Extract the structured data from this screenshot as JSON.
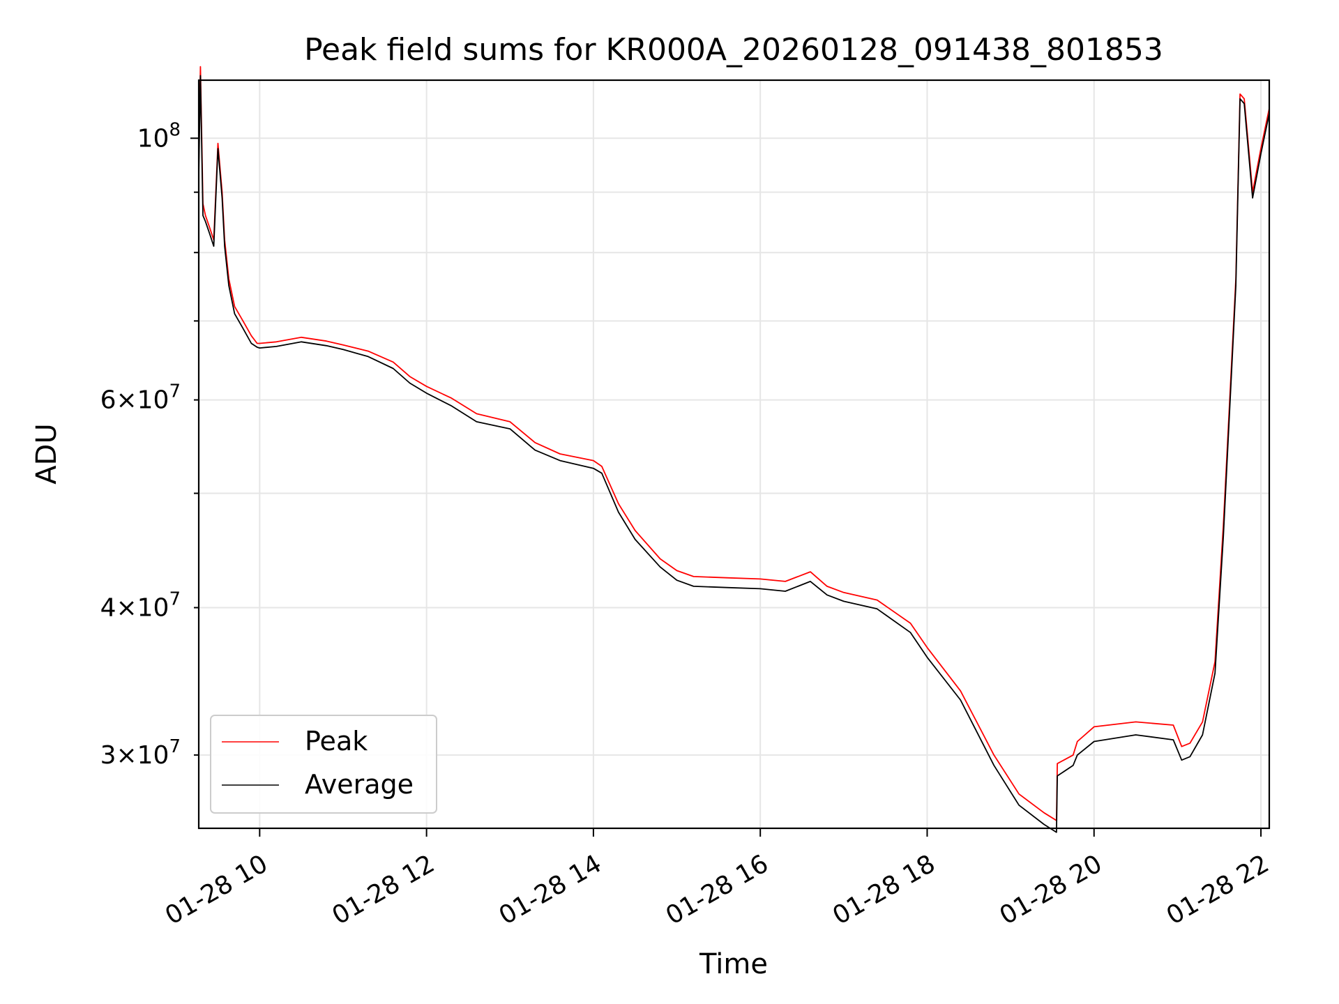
{
  "chart_data": {
    "type": "line",
    "title": "Peak field sums for KR000A_20260128_091438_801853",
    "xlabel": "Time",
    "ylabel": "ADU",
    "yscale": "log",
    "ylim": [
      26000000,
      112000000
    ],
    "xlim": [
      9.27,
      22.1
    ],
    "grid": true,
    "legend_position": "lower-left",
    "x_ticks": [
      {
        "value": 10,
        "label": "01-28 10"
      },
      {
        "value": 12,
        "label": "01-28 12"
      },
      {
        "value": 14,
        "label": "01-28 14"
      },
      {
        "value": 16,
        "label": "01-28 16"
      },
      {
        "value": 18,
        "label": "01-28 18"
      },
      {
        "value": 20,
        "label": "01-28 20"
      },
      {
        "value": 22,
        "label": "01-28 22"
      }
    ],
    "y_ticks_major": [
      {
        "value": 100000000,
        "mantissa": "",
        "exponent": "8",
        "label": "10^8"
      }
    ],
    "y_ticks_minor": [
      {
        "value": 30000000,
        "mantissa": "3",
        "exponent": "7",
        "label": "3×10^7"
      },
      {
        "value": 40000000,
        "mantissa": "4",
        "exponent": "7",
        "label": "4×10^7"
      },
      {
        "value": 50000000,
        "mantissa": "",
        "exponent": "",
        "label": ""
      },
      {
        "value": 60000000,
        "mantissa": "6",
        "exponent": "7",
        "label": "6×10^7"
      },
      {
        "value": 70000000,
        "mantissa": "",
        "exponent": "",
        "label": ""
      },
      {
        "value": 80000000,
        "mantissa": "",
        "exponent": "",
        "label": ""
      },
      {
        "value": 90000000,
        "mantissa": "",
        "exponent": "",
        "label": ""
      }
    ],
    "series": [
      {
        "name": "Peak",
        "color": "#ff0000",
        "x": [
          9.27,
          9.29,
          9.32,
          9.35,
          9.4,
          9.45,
          9.5,
          9.55,
          9.58,
          9.63,
          9.7,
          9.8,
          9.9,
          9.97,
          10.0,
          10.2,
          10.5,
          10.8,
          11.0,
          11.3,
          11.6,
          11.8,
          12.0,
          12.3,
          12.6,
          13.0,
          13.3,
          13.6,
          14.0,
          14.1,
          14.3,
          14.5,
          14.8,
          15.0,
          15.2,
          15.6,
          16.0,
          16.3,
          16.6,
          16.8,
          17.0,
          17.4,
          17.8,
          18.0,
          18.4,
          18.8,
          19.1,
          19.4,
          19.55,
          19.56,
          19.75,
          19.8,
          20.0,
          20.5,
          20.95,
          21.05,
          21.15,
          21.3,
          21.45,
          21.55,
          21.7,
          21.75,
          21.8,
          21.9,
          22.0,
          22.1
        ],
        "y": [
          95000000,
          115000000,
          88000000,
          86000000,
          84000000,
          82000000,
          99000000,
          90000000,
          82000000,
          76000000,
          72000000,
          70000000,
          68000000,
          67000000,
          67000000,
          67200000,
          67800000,
          67300000,
          66800000,
          66000000,
          64600000,
          62800000,
          61600000,
          60200000,
          58400000,
          57500000,
          55200000,
          54000000,
          53300000,
          52700000,
          49000000,
          46500000,
          44000000,
          43000000,
          42500000,
          42400000,
          42300000,
          42100000,
          42900000,
          41700000,
          41200000,
          40600000,
          38800000,
          37000000,
          34000000,
          30000000,
          27800000,
          26800000,
          26400000,
          29500000,
          30000000,
          30800000,
          31700000,
          32000000,
          31800000,
          30500000,
          30700000,
          32000000,
          36000000,
          47000000,
          76000000,
          109000000,
          108000000,
          90000000,
          98000000,
          106000000
        ]
      },
      {
        "name": "Average",
        "color": "#000000",
        "x": [
          9.27,
          9.29,
          9.32,
          9.35,
          9.4,
          9.45,
          9.5,
          9.55,
          9.58,
          9.63,
          9.7,
          9.8,
          9.9,
          9.97,
          10.0,
          10.2,
          10.5,
          10.8,
          11.0,
          11.3,
          11.6,
          11.8,
          12.0,
          12.3,
          12.6,
          13.0,
          13.3,
          13.6,
          14.0,
          14.1,
          14.3,
          14.5,
          14.8,
          15.0,
          15.2,
          15.6,
          16.0,
          16.3,
          16.6,
          16.8,
          17.0,
          17.4,
          17.8,
          18.0,
          18.4,
          18.8,
          19.1,
          19.4,
          19.55,
          19.56,
          19.75,
          19.8,
          20.0,
          20.5,
          20.95,
          21.05,
          21.15,
          21.3,
          21.45,
          21.55,
          21.7,
          21.75,
          21.8,
          21.9,
          22.0,
          22.1
        ],
        "y": [
          93000000,
          113000000,
          86000000,
          85000000,
          83000000,
          81000000,
          98000000,
          89000000,
          81000000,
          75000000,
          71000000,
          69000000,
          67000000,
          66500000,
          66400000,
          66600000,
          67200000,
          66700000,
          66200000,
          65300000,
          63800000,
          62000000,
          60800000,
          59300000,
          57500000,
          56700000,
          54400000,
          53300000,
          52500000,
          52000000,
          48200000,
          45700000,
          43300000,
          42200000,
          41700000,
          41600000,
          41500000,
          41300000,
          42100000,
          41000000,
          40500000,
          39900000,
          38100000,
          36300000,
          33400000,
          29400000,
          27200000,
          26200000,
          25800000,
          28800000,
          29400000,
          30000000,
          30800000,
          31200000,
          30900000,
          29700000,
          29900000,
          31200000,
          35200000,
          46000000,
          75000000,
          108000000,
          107000000,
          89000000,
          97000000,
          105000000
        ]
      }
    ]
  }
}
